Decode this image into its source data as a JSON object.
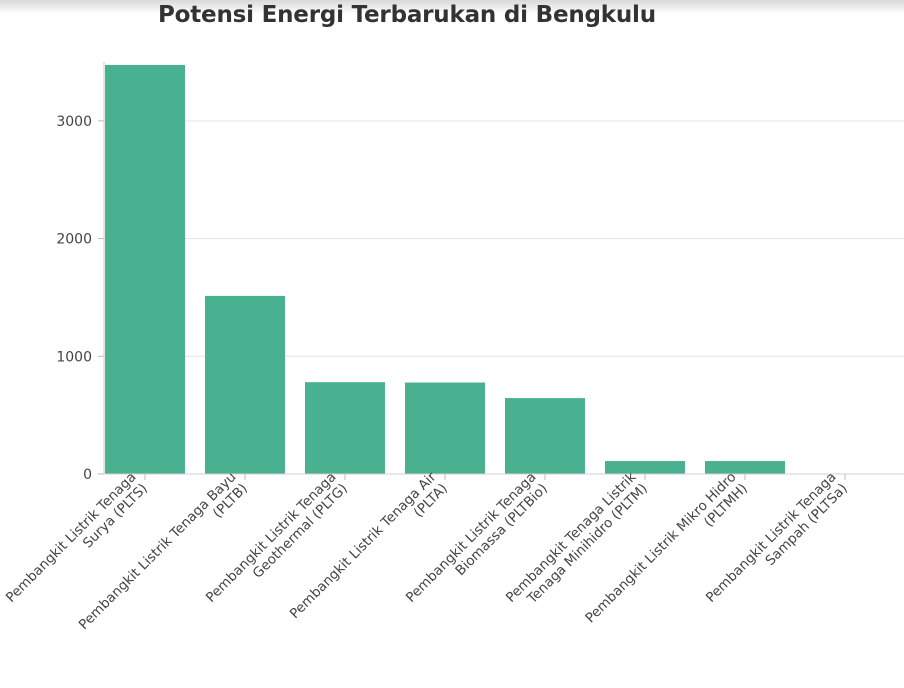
{
  "chart_data": {
    "type": "bar",
    "title": "Potensi Energi Terbarukan di Bengkulu",
    "xlabel": "",
    "ylabel": "",
    "categories": [
      [
        "Pembangkit Listrik Tenaga",
        "Surya (PLTS)"
      ],
      [
        "Pembangkit Listrik Tenaga Bayu",
        "(PLTB)"
      ],
      [
        "Pembangkit Listrik Tenaga",
        "Geothermal (PLTG)"
      ],
      [
        "Pembangkit Listrik Tenaga Air",
        "(PLTA)"
      ],
      [
        "Pembangkit Listrik Tenaga",
        "Biomassa (PLTBio)"
      ],
      [
        "Pembangkit Tenaga Listrik",
        "Tenaga Minihidro (PLTM)"
      ],
      [
        "Pembangkit Listrik Mikro Hidro",
        "(PLTMH)"
      ],
      [
        "Pembangkit Listrik Tenaga",
        "Sampah (PLTSa)"
      ]
    ],
    "values": [
      3475,
      1513,
      780,
      777,
      645,
      110,
      110,
      0
    ],
    "ylim": [
      0,
      3500
    ],
    "yticks": [
      0,
      1000,
      2000,
      3000
    ],
    "bar_color": "#4ab190",
    "grid": true
  }
}
